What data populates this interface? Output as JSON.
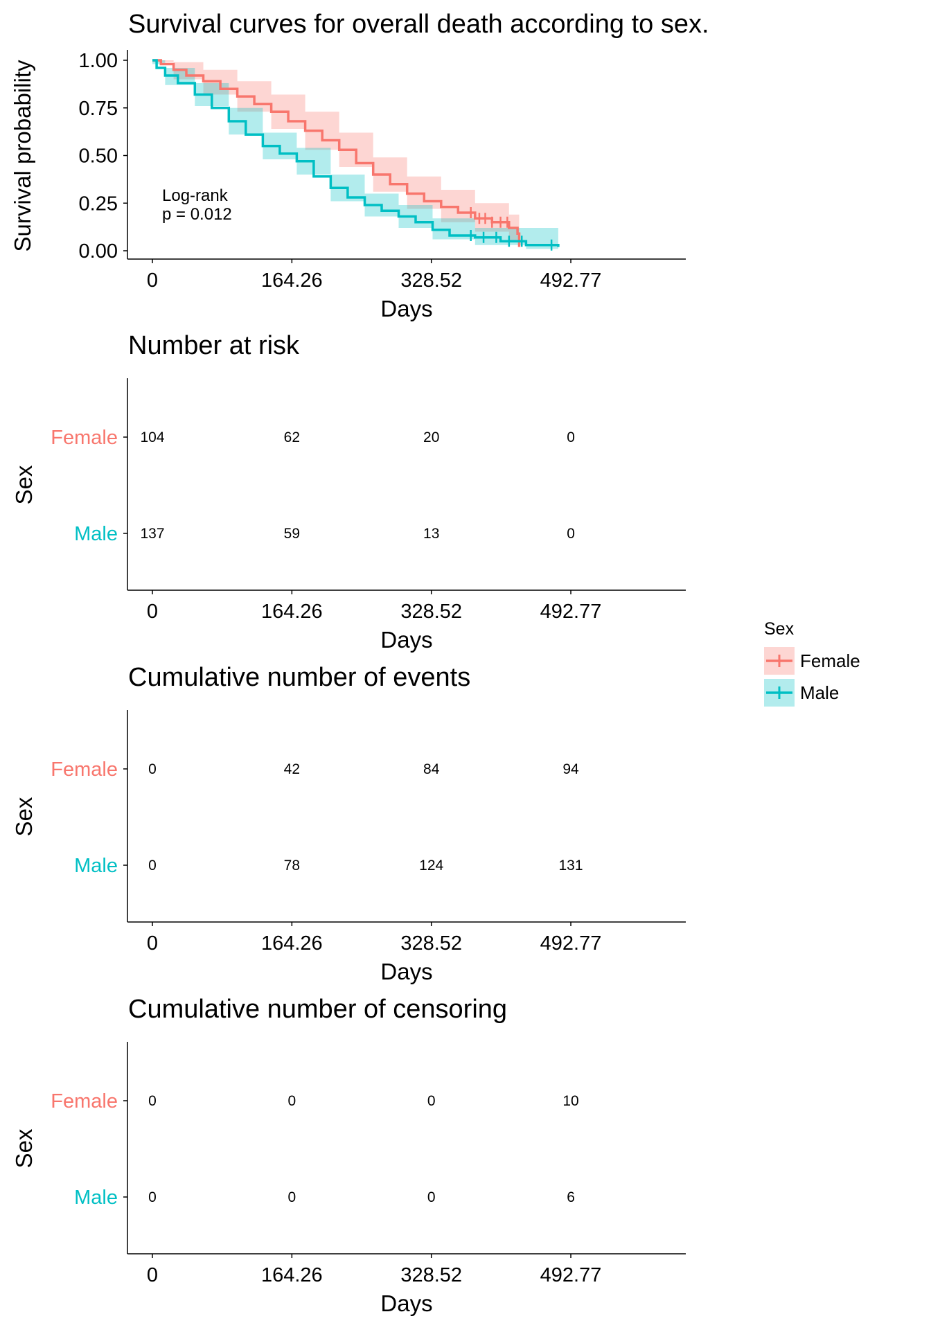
{
  "colors": {
    "female": "#F8766D",
    "male": "#00BFC4",
    "axis": "#000000"
  },
  "chart_data": [
    {
      "type": "line",
      "subtype": "kaplan-meier",
      "title": "Survival curves for overall death according to sex.",
      "xlabel": "Days",
      "ylabel": "Survival probability",
      "xlim": [
        0,
        492.77
      ],
      "ylim": [
        0,
        1
      ],
      "x_ticks": [
        "0",
        "164.26",
        "328.52",
        "492.77"
      ],
      "y_ticks": [
        "0.00",
        "0.25",
        "0.50",
        "0.75",
        "1.00"
      ],
      "x_tick_values": [
        0,
        164.26,
        328.52,
        492.77
      ],
      "y_tick_values": [
        0,
        0.25,
        0.5,
        0.75,
        1.0
      ],
      "grid": false,
      "annotation": [
        "Log-rank",
        "p = 0.012"
      ],
      "legend": {
        "title": "Sex",
        "placement": "right",
        "entries": [
          "Female",
          "Male"
        ]
      },
      "series": [
        {
          "name": "Female",
          "color": "#F8766D",
          "points": [
            [
              0,
              1.0
            ],
            [
              10,
              0.98
            ],
            [
              25,
              0.95
            ],
            [
              40,
              0.92
            ],
            [
              60,
              0.89
            ],
            [
              80,
              0.85
            ],
            [
              100,
              0.81
            ],
            [
              120,
              0.77
            ],
            [
              140,
              0.73
            ],
            [
              160,
              0.68
            ],
            [
              180,
              0.63
            ],
            [
              200,
              0.58
            ],
            [
              220,
              0.53
            ],
            [
              240,
              0.46
            ],
            [
              260,
              0.4
            ],
            [
              280,
              0.35
            ],
            [
              300,
              0.3
            ],
            [
              320,
              0.26
            ],
            [
              340,
              0.23
            ],
            [
              360,
              0.2
            ],
            [
              380,
              0.17
            ],
            [
              400,
              0.15
            ],
            [
              420,
              0.12
            ],
            [
              430,
              0.09
            ],
            [
              432,
              0.02
            ]
          ],
          "ci_lower": [
            [
              0,
              0.99
            ],
            [
              25,
              0.9
            ],
            [
              60,
              0.82
            ],
            [
              100,
              0.73
            ],
            [
              140,
              0.64
            ],
            [
              180,
              0.53
            ],
            [
              220,
              0.44
            ],
            [
              260,
              0.31
            ],
            [
              300,
              0.22
            ],
            [
              340,
              0.15
            ],
            [
              380,
              0.1
            ],
            [
              420,
              0.05
            ],
            [
              432,
              0.0
            ]
          ],
          "ci_upper": [
            [
              0,
              1.0
            ],
            [
              25,
              0.99
            ],
            [
              60,
              0.95
            ],
            [
              100,
              0.89
            ],
            [
              140,
              0.82
            ],
            [
              180,
              0.73
            ],
            [
              220,
              0.62
            ],
            [
              260,
              0.49
            ],
            [
              300,
              0.39
            ],
            [
              340,
              0.32
            ],
            [
              380,
              0.25
            ],
            [
              420,
              0.19
            ],
            [
              432,
              0.18
            ]
          ],
          "censor_times": [
            375,
            385,
            392,
            400,
            410,
            418
          ]
        },
        {
          "name": "Male",
          "color": "#00BFC4",
          "points": [
            [
              0,
              1.0
            ],
            [
              5,
              0.96
            ],
            [
              15,
              0.92
            ],
            [
              30,
              0.88
            ],
            [
              50,
              0.82
            ],
            [
              70,
              0.75
            ],
            [
              90,
              0.68
            ],
            [
              110,
              0.61
            ],
            [
              130,
              0.55
            ],
            [
              150,
              0.51
            ],
            [
              170,
              0.47
            ],
            [
              190,
              0.39
            ],
            [
              210,
              0.33
            ],
            [
              230,
              0.28
            ],
            [
              250,
              0.24
            ],
            [
              270,
              0.21
            ],
            [
              290,
              0.18
            ],
            [
              310,
              0.15
            ],
            [
              330,
              0.11
            ],
            [
              350,
              0.08
            ],
            [
              380,
              0.07
            ],
            [
              410,
              0.05
            ],
            [
              440,
              0.03
            ],
            [
              478,
              0.02
            ]
          ],
          "ci_lower": [
            [
              0,
              0.98
            ],
            [
              15,
              0.87
            ],
            [
              50,
              0.76
            ],
            [
              90,
              0.61
            ],
            [
              130,
              0.48
            ],
            [
              170,
              0.4
            ],
            [
              210,
              0.26
            ],
            [
              250,
              0.18
            ],
            [
              290,
              0.12
            ],
            [
              330,
              0.06
            ],
            [
              380,
              0.03
            ],
            [
              440,
              0.01
            ],
            [
              478,
              0.0
            ]
          ],
          "ci_upper": [
            [
              0,
              1.0
            ],
            [
              15,
              0.96
            ],
            [
              50,
              0.88
            ],
            [
              90,
              0.75
            ],
            [
              130,
              0.62
            ],
            [
              170,
              0.54
            ],
            [
              210,
              0.4
            ],
            [
              250,
              0.3
            ],
            [
              290,
              0.24
            ],
            [
              330,
              0.17
            ],
            [
              380,
              0.12
            ],
            [
              440,
              0.12
            ],
            [
              478,
              0.12
            ]
          ],
          "censor_times": [
            375,
            390,
            405,
            420,
            435,
            470
          ]
        }
      ]
    },
    {
      "type": "table",
      "title": "Number at risk",
      "xlabel": "Days",
      "ylabel": "Sex",
      "x_ticks": [
        "0",
        "164.26",
        "328.52",
        "492.77"
      ],
      "rows": [
        {
          "name": "Female",
          "color": "#F8766D",
          "values": [
            "104",
            "62",
            "20",
            "0"
          ]
        },
        {
          "name": "Male",
          "color": "#00BFC4",
          "values": [
            "137",
            "59",
            "13",
            "0"
          ]
        }
      ]
    },
    {
      "type": "table",
      "title": "Cumulative number of events",
      "xlabel": "Days",
      "ylabel": "Sex",
      "x_ticks": [
        "0",
        "164.26",
        "328.52",
        "492.77"
      ],
      "rows": [
        {
          "name": "Female",
          "color": "#F8766D",
          "values": [
            "0",
            "42",
            "84",
            "94"
          ]
        },
        {
          "name": "Male",
          "color": "#00BFC4",
          "values": [
            "0",
            "78",
            "124",
            "131"
          ]
        }
      ]
    },
    {
      "type": "table",
      "title": "Cumulative number of censoring",
      "xlabel": "Days",
      "ylabel": "Sex",
      "x_ticks": [
        "0",
        "164.26",
        "328.52",
        "492.77"
      ],
      "rows": [
        {
          "name": "Female",
          "color": "#F8766D",
          "values": [
            "0",
            "0",
            "0",
            "10"
          ]
        },
        {
          "name": "Male",
          "color": "#00BFC4",
          "values": [
            "0",
            "0",
            "0",
            "6"
          ]
        }
      ]
    }
  ]
}
